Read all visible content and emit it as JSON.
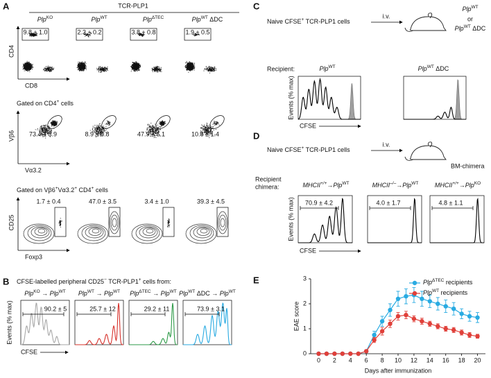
{
  "figure": {
    "A": {
      "letter": "A",
      "header": "TCR-PLP1",
      "columns": [
        [
          {
            "i": "Plp"
          },
          {
            "sup": "KO"
          }
        ],
        [
          {
            "i": "Plp"
          },
          {
            "sup": "WT"
          }
        ],
        [
          {
            "i": "Plp"
          },
          {
            "sup": "ΔTEC"
          }
        ],
        [
          {
            "i": "Plp"
          },
          {
            "sup": "WT"
          },
          " ΔDC"
        ]
      ],
      "row1": {
        "y_label": "CD4",
        "x_label": "CD8",
        "values": [
          "9.8 ± 1.0",
          "2.3 ± 0.2",
          "3.8 ± 0.8",
          "1.9 ± 0.5"
        ]
      },
      "row2": {
        "gate": [
          "Gated on CD4",
          {
            "sup": "+"
          },
          " cells"
        ],
        "y_label": "Vβ6",
        "x_label": "Vα3.2",
        "values": [
          "73.4 ± 3.9",
          "8.9 ± 0.8",
          "47.9 ± 5.1",
          "10.8 ± 1.4"
        ]
      },
      "row3": {
        "gate": [
          "Gated on Vβ6",
          {
            "sup": "+"
          },
          "Vα3.2",
          {
            "sup": "+"
          },
          " CD4",
          {
            "sup": "+"
          },
          " cells"
        ],
        "y_label": "CD25",
        "x_label": "Foxp3",
        "values": [
          "1.7 ± 0.4",
          "47.0 ± 3.5",
          "3.4 ± 1.0",
          "39.3 ± 4.5"
        ]
      }
    },
    "B": {
      "letter": "B",
      "caption": [
        "CFSE-labelled peripheral CD25",
        {
          "sup": "−"
        },
        " TCR-PLP1",
        {
          "sup": "+"
        },
        " cells from:"
      ],
      "headers": [
        [
          {
            "i": "Plp"
          },
          {
            "sup": "KO"
          },
          " → ",
          {
            "i": "Plp"
          },
          {
            "sup": "WT"
          }
        ],
        [
          {
            "i": "Plp"
          },
          {
            "sup": "WT"
          },
          " → ",
          {
            "i": "Plp"
          },
          {
            "sup": "WT"
          }
        ],
        [
          {
            "i": "Plp"
          },
          {
            "sup": "ΔTEC"
          },
          " → ",
          {
            "i": "Plp"
          },
          {
            "sup": "WT"
          }
        ],
        [
          {
            "i": "Plp"
          },
          {
            "sup": "WT"
          },
          " ΔDC → ",
          {
            "i": "Plp"
          },
          {
            "sup": "WT"
          }
        ]
      ],
      "values": [
        "90.2 ± 5",
        "25.7 ± 12",
        "29.2 ± 11",
        "73.9 ± 3.1"
      ],
      "colors": [
        "#a6a6a6",
        "#d7302a",
        "#2e9a48",
        "#27a9e1"
      ],
      "y_label": "Events (% max)",
      "x_label": "CFSE"
    },
    "C": {
      "letter": "C",
      "cells": [
        "Naive CFSE",
        {
          "sup": "+"
        },
        " TCR-PLP1 cells"
      ],
      "route": "i.v.",
      "target": [
        {
          "i": "Plp"
        },
        {
          "sup": "WT"
        }
      ],
      "or": "or",
      "target_alt": [
        {
          "i": "Plp"
        },
        {
          "sup": "WT"
        },
        " ΔDC"
      ],
      "recipient_label": "Recipient:",
      "headers": [
        [
          {
            "i": "Plp"
          },
          {
            "sup": "WT"
          }
        ],
        [
          {
            "i": "Plp"
          },
          {
            "sup": "WT"
          },
          " ΔDC"
        ]
      ],
      "y_label": "Events (% max)",
      "x_label": "CFSE"
    },
    "D": {
      "letter": "D",
      "cells": [
        "Naive CFSE",
        {
          "sup": "+"
        },
        " TCR-PLP1 cells"
      ],
      "route": "i.v.",
      "target": "BM-chimera",
      "recipient_label": [
        "Recipient",
        "chimera:"
      ],
      "headers": [
        [
          {
            "i": "MHCII"
          },
          {
            "isup": "+/+"
          },
          "→",
          {
            "i": "Plp"
          },
          {
            "sup": "WT"
          }
        ],
        [
          {
            "i": "MHCII"
          },
          {
            "isup": "–/–"
          },
          "→",
          {
            "i": "Plp"
          },
          {
            "sup": "WT"
          }
        ],
        [
          {
            "i": "MHCII"
          },
          {
            "isup": "+/+"
          },
          "→",
          {
            "i": "Plp"
          },
          {
            "sup": "KO"
          }
        ]
      ],
      "values": [
        "70.9 ± 4.2",
        "4.0 ± 1.7",
        "4.8 ± 1.1"
      ],
      "y_label": "Events (% max)",
      "x_label": "CFSE"
    }
  },
  "chart_data": {
    "type": "line",
    "letter": "E",
    "x": [
      0,
      1,
      2,
      3,
      4,
      5,
      6,
      7,
      8,
      9,
      10,
      11,
      12,
      13,
      14,
      15,
      16,
      17,
      18,
      19,
      20
    ],
    "xlim": [
      -1,
      21
    ],
    "xticks": [
      0,
      2,
      4,
      6,
      8,
      10,
      12,
      14,
      16,
      18,
      20
    ],
    "ylim": [
      0,
      3
    ],
    "yticks": [
      0,
      1,
      2,
      3
    ],
    "y_label": "EAE score",
    "x_label": "Days after immunization",
    "legend": "top-right",
    "series": [
      {
        "name": [
          {
            "i": "Plp"
          },
          {
            "sup": "ΔTEC"
          },
          " recipients"
        ],
        "color": "#29abe2",
        "values": [
          0,
          0,
          0,
          0,
          0,
          0,
          0.1,
          0.75,
          1.3,
          1.75,
          2.2,
          2.3,
          2.35,
          2.2,
          2.1,
          2.0,
          1.9,
          1.8,
          1.6,
          1.5,
          1.45
        ],
        "errors": [
          0,
          0,
          0,
          0,
          0,
          0,
          0.05,
          0.15,
          0.2,
          0.25,
          0.3,
          0.3,
          0.3,
          0.3,
          0.25,
          0.25,
          0.25,
          0.25,
          0.2,
          0.2,
          0.2
        ]
      },
      {
        "name": [
          {
            "i": "Plp"
          },
          {
            "sup": "WT"
          },
          " recipients"
        ],
        "color": "#e0403a",
        "values": [
          0,
          0,
          0,
          0,
          0,
          0,
          0.1,
          0.55,
          0.9,
          1.2,
          1.5,
          1.55,
          1.4,
          1.3,
          1.2,
          1.1,
          1.0,
          0.95,
          0.85,
          0.75,
          0.7
        ],
        "errors": [
          0,
          0,
          0,
          0,
          0,
          0,
          0.05,
          0.1,
          0.15,
          0.15,
          0.15,
          0.15,
          0.12,
          0.12,
          0.1,
          0.1,
          0.1,
          0.1,
          0.1,
          0.1,
          0.08
        ]
      }
    ]
  }
}
